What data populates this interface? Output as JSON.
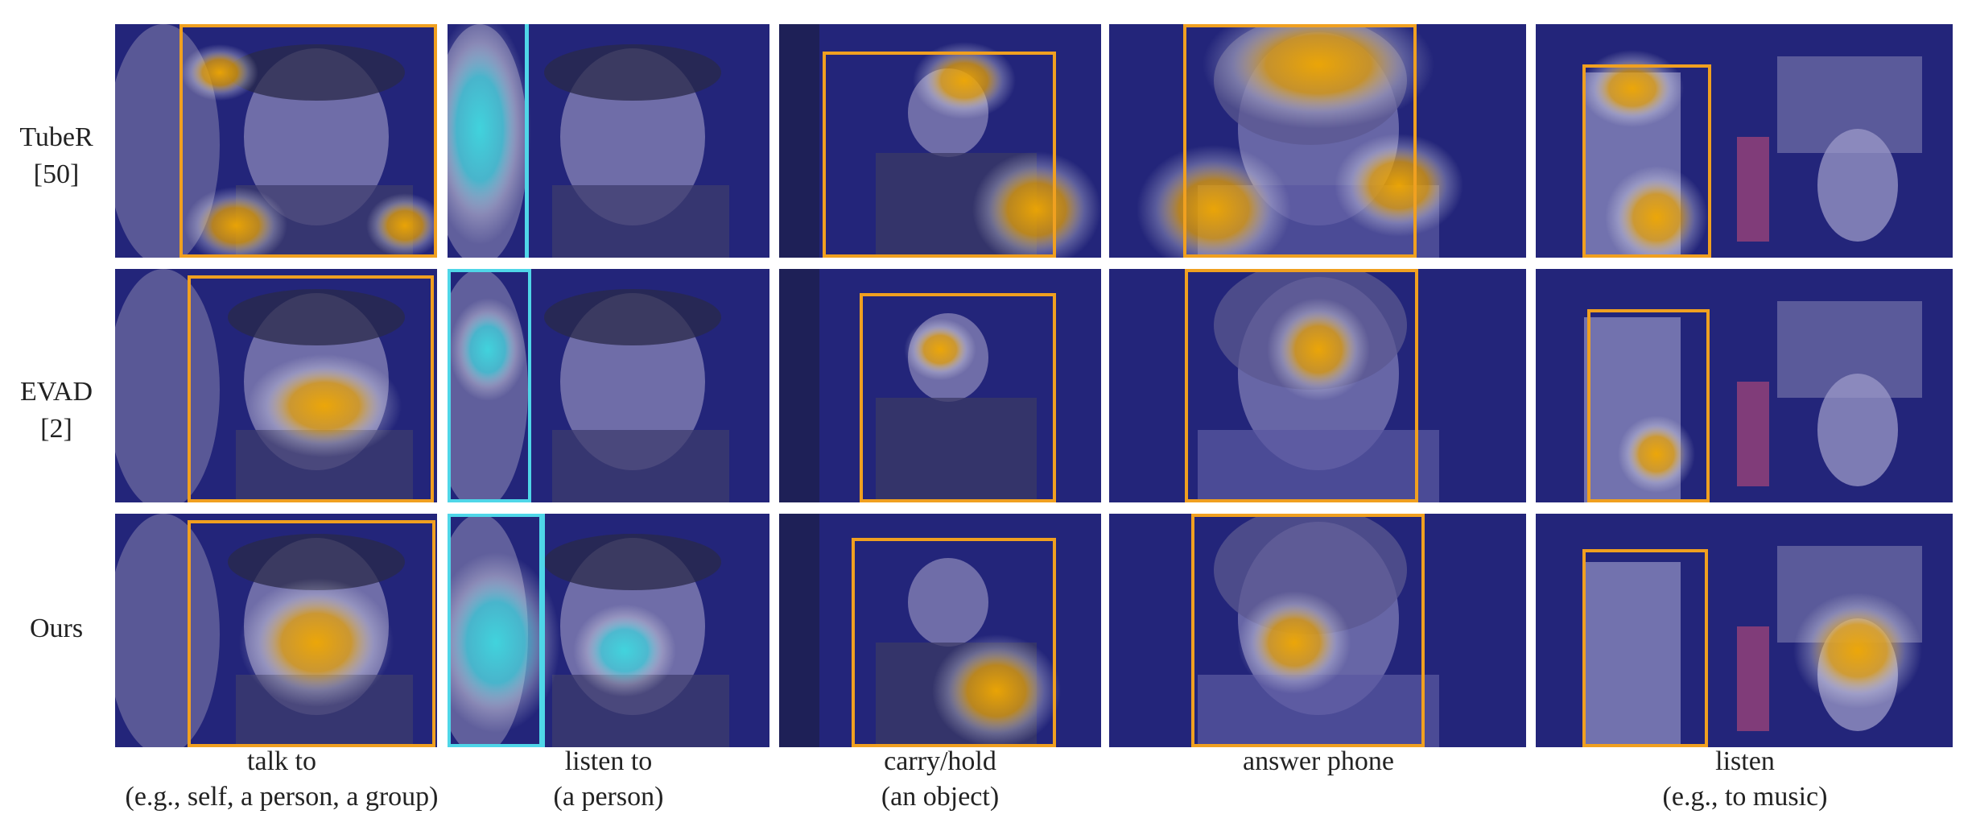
{
  "rows": [
    {
      "label_line1": "TubeR",
      "label_line2": "[50]"
    },
    {
      "label_line1": "EVAD",
      "label_line2": "[2]"
    },
    {
      "label_line1": "Ours",
      "label_line2": ""
    }
  ],
  "columns": [
    {
      "caption_line1": "talk to",
      "caption_line2": "(e.g., self, a person, a group)"
    },
    {
      "caption_line1": "listen to",
      "caption_line2": "(a person)"
    },
    {
      "caption_line1": "carry/hold",
      "caption_line2": "(an object)"
    },
    {
      "caption_line1": "answer phone",
      "caption_line2": ""
    },
    {
      "caption_line1": "listen",
      "caption_line2": "(e.g., to music)"
    }
  ],
  "colors": {
    "actor_box": "#f0a020",
    "context_box": "#4fd6e8",
    "attention_hot": "#f2a900",
    "attention_context": "#3fd9e0",
    "frame_tint": "#23257a"
  },
  "icons": [
    "attention-heatmap",
    "actor-bounding-box",
    "context-bounding-box"
  ]
}
